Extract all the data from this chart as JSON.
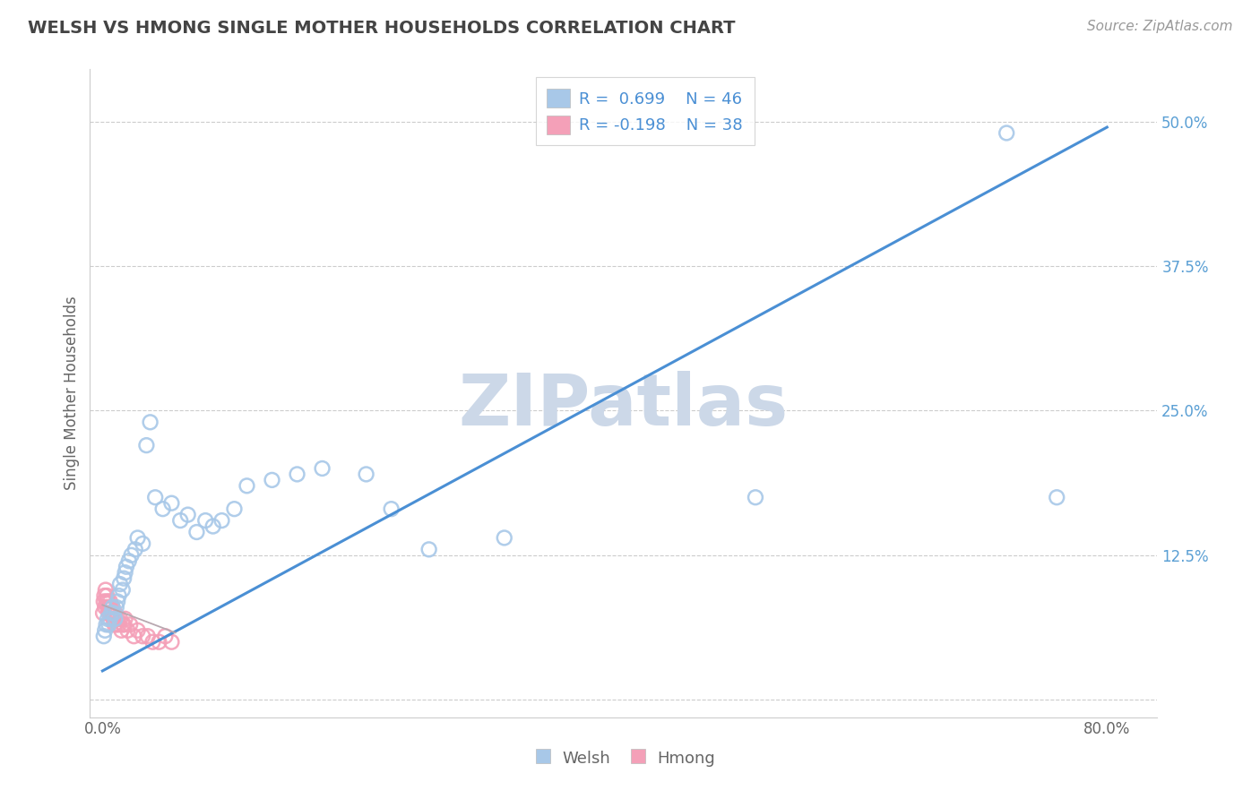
{
  "title": "WELSH VS HMONG SINGLE MOTHER HOUSEHOLDS CORRELATION CHART",
  "source": "Source: ZipAtlas.com",
  "ylabel": "Single Mother Households",
  "y_ticks": [
    0.0,
    0.125,
    0.25,
    0.375,
    0.5
  ],
  "y_tick_labels": [
    "",
    "12.5%",
    "25.0%",
    "37.5%",
    "50.0%"
  ],
  "x_ticks": [
    0.0,
    0.1,
    0.2,
    0.3,
    0.4,
    0.5,
    0.6,
    0.7,
    0.8
  ],
  "x_tick_labels": [
    "0.0%",
    "",
    "",
    "",
    "",
    "",
    "",
    "",
    "80.0%"
  ],
  "xlim": [
    -0.01,
    0.84
  ],
  "ylim": [
    -0.015,
    0.545
  ],
  "welsh_R": 0.699,
  "welsh_N": 46,
  "hmong_R": -0.198,
  "hmong_N": 38,
  "welsh_color": "#a8c8e8",
  "welsh_line_color": "#4a8fd4",
  "hmong_color": "#f4a0b8",
  "hmong_line_color": "#c8a8b4",
  "watermark": "ZIPatlas",
  "watermark_color": "#ccd8e8",
  "grid_color": "#cccccc",
  "title_color": "#444444",
  "tick_color": "#5a9fd4",
  "background_color": "#ffffff",
  "welsh_x": [
    0.001,
    0.002,
    0.003,
    0.004,
    0.005,
    0.006,
    0.007,
    0.008,
    0.009,
    0.01,
    0.011,
    0.012,
    0.013,
    0.014,
    0.016,
    0.017,
    0.018,
    0.019,
    0.021,
    0.023,
    0.026,
    0.028,
    0.032,
    0.035,
    0.038,
    0.042,
    0.048,
    0.055,
    0.062,
    0.068,
    0.075,
    0.082,
    0.088,
    0.095,
    0.105,
    0.115,
    0.135,
    0.155,
    0.175,
    0.21,
    0.23,
    0.26,
    0.32,
    0.52,
    0.72,
    0.76
  ],
  "welsh_y": [
    0.055,
    0.06,
    0.065,
    0.07,
    0.065,
    0.07,
    0.075,
    0.08,
    0.075,
    0.07,
    0.08,
    0.085,
    0.09,
    0.1,
    0.095,
    0.105,
    0.11,
    0.115,
    0.12,
    0.125,
    0.13,
    0.14,
    0.135,
    0.22,
    0.24,
    0.175,
    0.165,
    0.17,
    0.155,
    0.16,
    0.145,
    0.155,
    0.15,
    0.155,
    0.165,
    0.185,
    0.19,
    0.195,
    0.2,
    0.195,
    0.165,
    0.13,
    0.14,
    0.175,
    0.49,
    0.175
  ],
  "hmong_x": [
    0.0005,
    0.001,
    0.0015,
    0.002,
    0.0025,
    0.003,
    0.0035,
    0.004,
    0.0045,
    0.005,
    0.0055,
    0.006,
    0.0065,
    0.007,
    0.0075,
    0.008,
    0.0085,
    0.009,
    0.0095,
    0.01,
    0.011,
    0.012,
    0.013,
    0.014,
    0.015,
    0.016,
    0.017,
    0.018,
    0.02,
    0.022,
    0.025,
    0.028,
    0.032,
    0.036,
    0.04,
    0.045,
    0.05,
    0.055
  ],
  "hmong_y": [
    0.075,
    0.085,
    0.09,
    0.08,
    0.095,
    0.085,
    0.09,
    0.08,
    0.085,
    0.075,
    0.08,
    0.085,
    0.075,
    0.08,
    0.075,
    0.08,
    0.07,
    0.075,
    0.065,
    0.075,
    0.065,
    0.07,
    0.065,
    0.07,
    0.06,
    0.065,
    0.065,
    0.07,
    0.06,
    0.065,
    0.055,
    0.06,
    0.055,
    0.055,
    0.05,
    0.05,
    0.055,
    0.05
  ],
  "welsh_line_x0": 0.0,
  "welsh_line_y0": 0.025,
  "welsh_line_x1": 0.8,
  "welsh_line_y1": 0.495,
  "hmong_line_x0": 0.0,
  "hmong_line_y0": 0.082,
  "hmong_line_x1": 0.058,
  "hmong_line_y1": 0.058
}
